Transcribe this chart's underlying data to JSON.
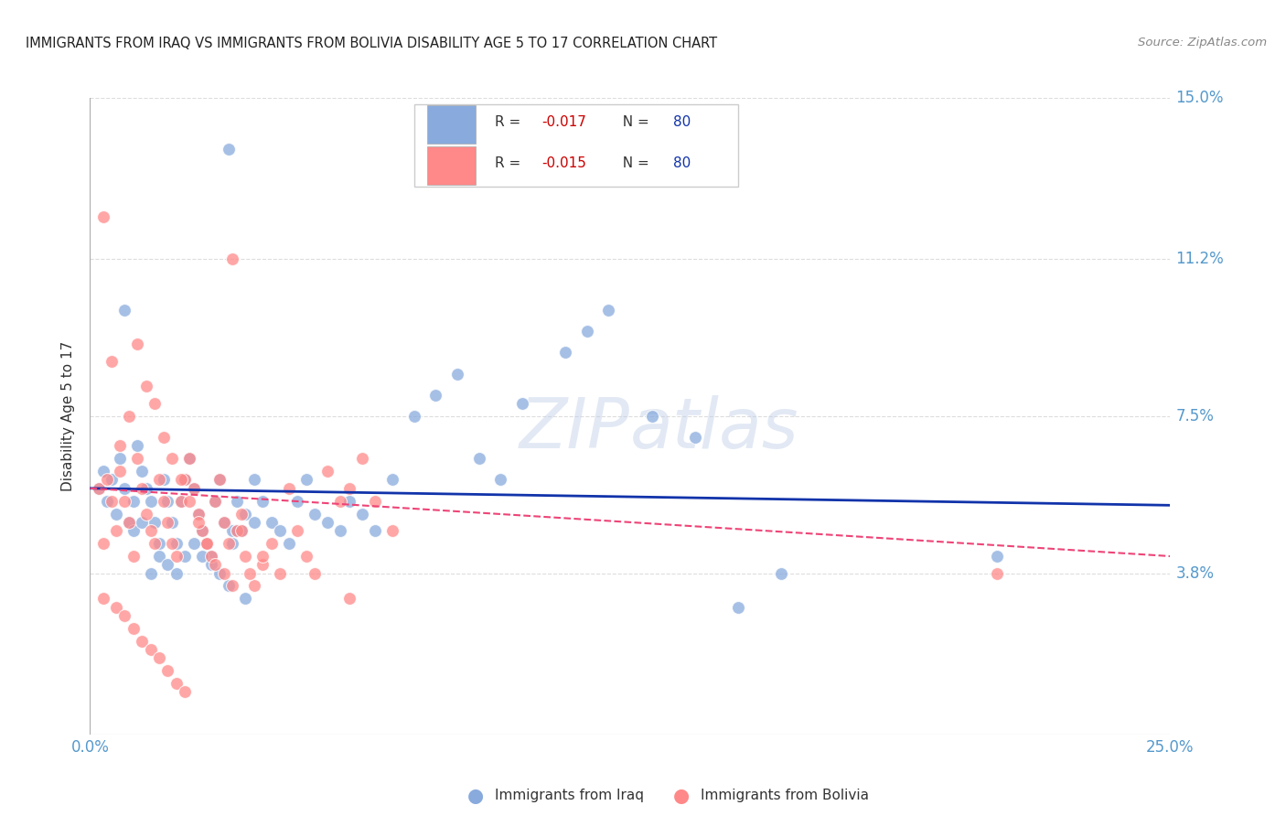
{
  "title": "IMMIGRANTS FROM IRAQ VS IMMIGRANTS FROM BOLIVIA DISABILITY AGE 5 TO 17 CORRELATION CHART",
  "source": "Source: ZipAtlas.com",
  "ylabel": "Disability Age 5 to 17",
  "xlim": [
    0.0,
    0.25
  ],
  "ylim": [
    0.0,
    0.15
  ],
  "ytick_positions": [
    0.038,
    0.075,
    0.112,
    0.15
  ],
  "ytick_labels": [
    "3.8%",
    "7.5%",
    "11.2%",
    "15.0%"
  ],
  "iraq_color": "#88AADD",
  "bolivia_color": "#FF8888",
  "iraq_line_color": "#1133AA",
  "bolivia_line_color": "#EE4477",
  "watermark": "ZIPatlas",
  "background_color": "#ffffff",
  "grid_color": "#dddddd",
  "iraq_x": [
    0.002,
    0.003,
    0.004,
    0.005,
    0.006,
    0.007,
    0.008,
    0.009,
    0.01,
    0.011,
    0.012,
    0.013,
    0.014,
    0.015,
    0.016,
    0.017,
    0.018,
    0.019,
    0.02,
    0.021,
    0.022,
    0.023,
    0.024,
    0.025,
    0.026,
    0.027,
    0.028,
    0.029,
    0.03,
    0.031,
    0.032,
    0.033,
    0.034,
    0.035,
    0.036,
    0.038,
    0.04,
    0.042,
    0.044,
    0.046,
    0.048,
    0.05,
    0.052,
    0.055,
    0.058,
    0.06,
    0.063,
    0.066,
    0.07,
    0.075,
    0.08,
    0.085,
    0.09,
    0.095,
    0.1,
    0.11,
    0.115,
    0.12,
    0.13,
    0.14,
    0.15,
    0.16,
    0.033,
    0.008,
    0.01,
    0.012,
    0.014,
    0.016,
    0.018,
    0.02,
    0.022,
    0.024,
    0.026,
    0.028,
    0.03,
    0.032,
    0.034,
    0.036,
    0.038,
    0.21
  ],
  "iraq_y": [
    0.058,
    0.062,
    0.055,
    0.06,
    0.052,
    0.065,
    0.058,
    0.05,
    0.055,
    0.068,
    0.062,
    0.058,
    0.055,
    0.05,
    0.045,
    0.06,
    0.055,
    0.05,
    0.045,
    0.055,
    0.06,
    0.065,
    0.058,
    0.052,
    0.048,
    0.045,
    0.042,
    0.055,
    0.06,
    0.05,
    0.138,
    0.045,
    0.055,
    0.048,
    0.052,
    0.06,
    0.055,
    0.05,
    0.048,
    0.045,
    0.055,
    0.06,
    0.052,
    0.05,
    0.048,
    0.055,
    0.052,
    0.048,
    0.06,
    0.075,
    0.08,
    0.085,
    0.065,
    0.06,
    0.078,
    0.09,
    0.095,
    0.1,
    0.075,
    0.07,
    0.03,
    0.038,
    0.048,
    0.1,
    0.048,
    0.05,
    0.038,
    0.042,
    0.04,
    0.038,
    0.042,
    0.045,
    0.042,
    0.04,
    0.038,
    0.035,
    0.048,
    0.032,
    0.05,
    0.042
  ],
  "bolivia_x": [
    0.002,
    0.003,
    0.004,
    0.005,
    0.006,
    0.007,
    0.008,
    0.009,
    0.01,
    0.011,
    0.012,
    0.013,
    0.014,
    0.015,
    0.016,
    0.017,
    0.018,
    0.019,
    0.02,
    0.021,
    0.022,
    0.023,
    0.024,
    0.025,
    0.026,
    0.027,
    0.028,
    0.029,
    0.03,
    0.031,
    0.032,
    0.033,
    0.034,
    0.035,
    0.036,
    0.038,
    0.04,
    0.042,
    0.044,
    0.046,
    0.048,
    0.05,
    0.052,
    0.055,
    0.058,
    0.06,
    0.063,
    0.066,
    0.07,
    0.003,
    0.005,
    0.007,
    0.009,
    0.011,
    0.013,
    0.015,
    0.017,
    0.019,
    0.021,
    0.023,
    0.025,
    0.027,
    0.029,
    0.031,
    0.033,
    0.003,
    0.006,
    0.008,
    0.01,
    0.012,
    0.014,
    0.016,
    0.018,
    0.02,
    0.022,
    0.035,
    0.037,
    0.04,
    0.21,
    0.06
  ],
  "bolivia_y": [
    0.058,
    0.045,
    0.06,
    0.055,
    0.048,
    0.062,
    0.055,
    0.05,
    0.042,
    0.065,
    0.058,
    0.052,
    0.048,
    0.045,
    0.06,
    0.055,
    0.05,
    0.045,
    0.042,
    0.055,
    0.06,
    0.065,
    0.058,
    0.052,
    0.048,
    0.045,
    0.042,
    0.055,
    0.06,
    0.05,
    0.045,
    0.112,
    0.048,
    0.052,
    0.042,
    0.035,
    0.04,
    0.045,
    0.038,
    0.058,
    0.048,
    0.042,
    0.038,
    0.062,
    0.055,
    0.058,
    0.065,
    0.055,
    0.048,
    0.122,
    0.088,
    0.068,
    0.075,
    0.092,
    0.082,
    0.078,
    0.07,
    0.065,
    0.06,
    0.055,
    0.05,
    0.045,
    0.04,
    0.038,
    0.035,
    0.032,
    0.03,
    0.028,
    0.025,
    0.022,
    0.02,
    0.018,
    0.015,
    0.012,
    0.01,
    0.048,
    0.038,
    0.042,
    0.038,
    0.032
  ]
}
